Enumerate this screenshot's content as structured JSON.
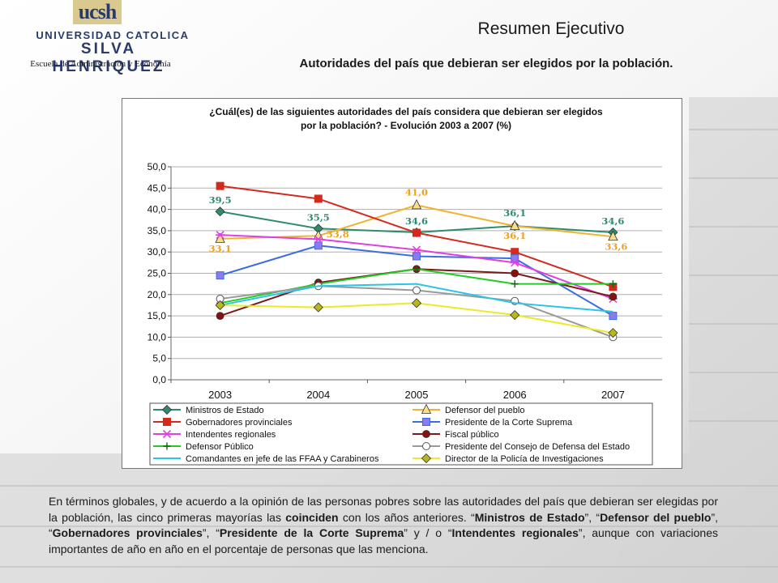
{
  "logo": {
    "mark": "ucsh",
    "line1": "UNIVERSIDAD CATOLICA",
    "line2": "SILVA HENRIQUEZ",
    "school": "Escuela de Administración y Economía"
  },
  "header": {
    "title": "Resumen Ejecutivo",
    "subtitle": "Autoridades del país que debieran ser elegidos por la población."
  },
  "chart_data": {
    "type": "line",
    "title_line1": "¿Cuál(es) de las siguientes autoridades del país considera que debieran ser elegidos",
    "title_line2": "por la población?  - Evolución 2003 a 2007 (%)",
    "categories": [
      "2003",
      "2004",
      "2005",
      "2006",
      "2007"
    ],
    "ylim": [
      0,
      50
    ],
    "yticks": [
      "0,0",
      "5,0",
      "10,0",
      "15,0",
      "20,0",
      "25,0",
      "30,0",
      "35,0",
      "40,0",
      "45,0",
      "50,0"
    ],
    "ytick_values": [
      0,
      5,
      10,
      15,
      20,
      25,
      30,
      35,
      40,
      45,
      50
    ],
    "grid": true,
    "legend_placement": "bottom",
    "series": [
      {
        "name": "Ministros de Estado",
        "values": [
          39.5,
          35.5,
          34.6,
          36.1,
          34.6
        ],
        "color": "#2e8b6b",
        "marker": "diamond",
        "fill": "#2e8b6b"
      },
      {
        "name": "Defensor del pueblo",
        "values": [
          33.1,
          33.8,
          41.0,
          36.1,
          33.6
        ],
        "color": "#f0b432",
        "marker": "triangle",
        "fill": "#f7e08a"
      },
      {
        "name": "Gobernadores provinciales",
        "values": [
          45.5,
          42.5,
          34.5,
          30.0,
          21.8
        ],
        "color": "#d42a1e",
        "marker": "square",
        "fill": "#d42a1e"
      },
      {
        "name": "Presidente de la Corte Suprema",
        "values": [
          24.5,
          31.5,
          29.0,
          28.5,
          15.0
        ],
        "color": "#3a6ee0",
        "marker": "square",
        "fill": "#8a7cf0"
      },
      {
        "name": "Intendentes regionales",
        "values": [
          34.0,
          33.0,
          30.5,
          27.5,
          19.0
        ],
        "color": "#e040e0",
        "marker": "star",
        "fill": "#e040e0"
      },
      {
        "name": "Fiscal público",
        "values": [
          15.0,
          22.8,
          26.0,
          25.0,
          19.5
        ],
        "color": "#7a1a1a",
        "marker": "circle",
        "fill": "#8a1010"
      },
      {
        "name": "Defensor Público",
        "values": [
          18.0,
          22.5,
          26.0,
          22.5,
          22.5
        ],
        "color": "#22cc22",
        "marker": "plus",
        "fill": "#116611"
      },
      {
        "name": "Presidente del Consejo de Defensa del Estado",
        "values": [
          19.0,
          22.0,
          21.0,
          18.5,
          10.0
        ],
        "color": "#999999",
        "marker": "circle-open",
        "fill": "#ffffff"
      },
      {
        "name": "Comandantes en jefe de las FFAA y Carabineros",
        "values": [
          17.5,
          22.0,
          22.5,
          18.0,
          16.0
        ],
        "color": "#29c4e8",
        "marker": "none",
        "fill": "#29c4e8"
      },
      {
        "name": "Director de la Policía de Investigaciones",
        "values": [
          17.5,
          17.0,
          18.0,
          15.2,
          11.0
        ],
        "color": "#eaea2a",
        "marker": "diamond",
        "fill": "#b8b818"
      }
    ],
    "data_labels": [
      {
        "text": "39,5",
        "series": 0,
        "point": 0,
        "color": "#2e8b6b"
      },
      {
        "text": "35,5",
        "series": 0,
        "point": 1,
        "color": "#2e8b6b"
      },
      {
        "text": "34,6",
        "series": 0,
        "point": 2,
        "color": "#2e8b6b"
      },
      {
        "text": "36,1",
        "series": 0,
        "point": 3,
        "color": "#2e8b6b"
      },
      {
        "text": "34,6",
        "series": 0,
        "point": 4,
        "color": "#2e8b6b"
      },
      {
        "text": "33,1",
        "series": 1,
        "point": 0,
        "color": "#f0a020"
      },
      {
        "text": "33,8",
        "series": 1,
        "point": 1,
        "color": "#f0a020"
      },
      {
        "text": "41,0",
        "series": 1,
        "point": 2,
        "color": "#f0a020"
      },
      {
        "text": "36,1",
        "series": 1,
        "point": 3,
        "color": "#f0a020"
      },
      {
        "text": "33,6",
        "series": 1,
        "point": 4,
        "color": "#f0a020"
      }
    ]
  },
  "body": {
    "p1": "En términos globales, y de acuerdo a la opinión de las personas pobres sobre las autoridades del país que debieran ser elegidas por la población, las cinco primeras mayorías las ",
    "b1": "coinciden",
    "p2": " con los años anteriores. “",
    "b2": "Ministros de Estado",
    "p3": "”, “",
    "b3": "Defensor del pueblo",
    "p4": "”, “",
    "b4": "Gobernadores provinciales",
    "p5": "”, “",
    "b5": "Presidente de la Corte Suprema",
    "p6": "” y / o “",
    "b6": "Intendentes regionales",
    "p7": "”, aunque con variaciones importantes de año en año en el porcentaje de personas que las menciona."
  }
}
